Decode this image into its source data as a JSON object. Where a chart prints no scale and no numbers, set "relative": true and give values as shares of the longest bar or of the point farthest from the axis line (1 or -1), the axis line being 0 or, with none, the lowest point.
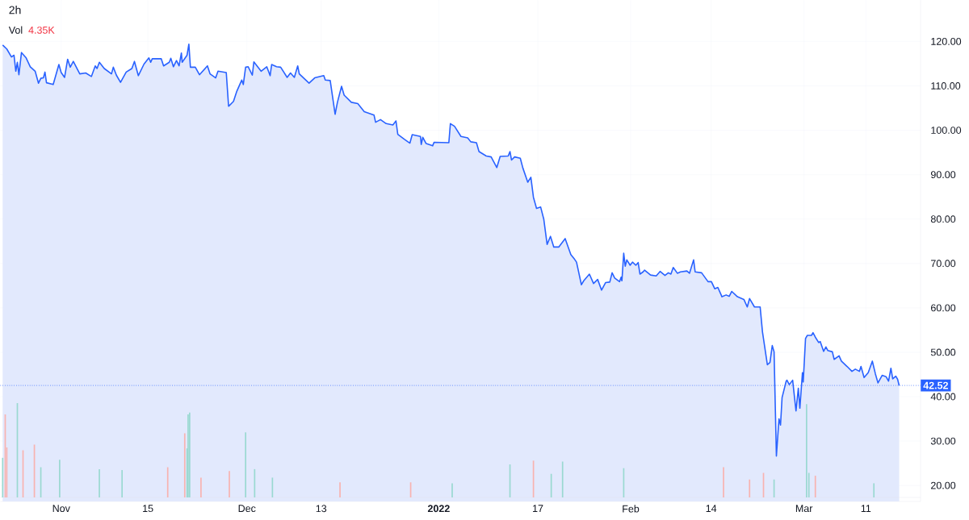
{
  "chart_data": [
    {
      "type": "area",
      "title": "2h",
      "annotations": [
        "Vol",
        "4.35K"
      ],
      "x": [
        "2021-10-22T13:00",
        "2021-10-23T05:00",
        "2021-10-23T23:00",
        "2021-10-24T09:00",
        "2021-10-24T16:00",
        "2021-10-24T22:00",
        "2021-10-25T04:00",
        "2021-10-25T14:00",
        "2021-10-26T08:00",
        "2021-10-27T00:00",
        "2021-10-27T19:00",
        "2021-10-28T08:00",
        "2021-10-28T17:00",
        "2021-10-29T03:00",
        "2021-10-29T09:00",
        "2021-10-29T15:00",
        "2021-10-30T17:00",
        "2021-10-31T15:00",
        "2021-11-01T00:00",
        "2021-11-01T13:00",
        "2021-11-02T01:00",
        "2021-11-02T11:00",
        "2021-11-02T23:00",
        "2021-11-04T00:00",
        "2021-11-04T23:00",
        "2021-11-05T21:00",
        "2021-11-06T12:00",
        "2021-11-06T19:00",
        "2021-11-07T04:00",
        "2021-11-07T23:00",
        "2021-11-09T03:00",
        "2021-11-09T10:00",
        "2021-11-09T22:00",
        "2021-11-10T14:00",
        "2021-11-11T12:00",
        "2021-11-12T10:00",
        "2021-11-12T20:00",
        "2021-11-13T11:00",
        "2021-11-14T09:00",
        "2021-11-15T04:00",
        "2021-11-15T11:00",
        "2021-11-15T17:00",
        "2021-11-17T04:00",
        "2021-11-17T13:00",
        "2021-11-18T11:00",
        "2021-11-18T17:00",
        "2021-11-19T03:00",
        "2021-11-19T15:00",
        "2021-11-20T01:00",
        "2021-11-20T10:00",
        "2021-11-20T13:00",
        "2021-11-21T08:00",
        "2021-11-21T15:00",
        "2021-11-21T21:00",
        "2021-11-22T16:00",
        "2021-11-23T08:00",
        "2021-11-24T15:00",
        "2021-11-25T01:00",
        "2021-11-25T23:00",
        "2021-11-26T08:00",
        "2021-11-27T16:00",
        "2021-11-28T01:00",
        "2021-11-28T20:00",
        "2021-11-29T09:00",
        "2021-11-30T04:00",
        "2021-11-30T10:00",
        "2021-11-30T19:00",
        "2021-12-01T05:00",
        "2021-12-01T21:00",
        "2021-12-02T03:00",
        "2021-12-03T07:00",
        "2021-12-04T05:00",
        "2021-12-04T18:00",
        "2021-12-05T00:00",
        "2021-12-05T19:00",
        "2021-12-06T11:00",
        "2021-12-07T12:00",
        "2021-12-08T01:00",
        "2021-12-08T16:00",
        "2021-12-09T05:00",
        "2021-12-09T11:00",
        "2021-12-11T01:00",
        "2021-12-11T23:00",
        "2021-12-13T10:00",
        "2021-12-13T16:00",
        "2021-12-14T11:00",
        "2021-12-15T06:00",
        "2021-12-15T15:00",
        "2021-12-16T07:00",
        "2021-12-16T17:00",
        "2021-12-17T21:00",
        "2021-12-18T22:00",
        "2021-12-19T23:00",
        "2021-12-21T13:00",
        "2021-12-21T19:00",
        "2021-12-22T14:00",
        "2021-12-23T12:00",
        "2021-12-24T14:00",
        "2021-12-25T02:00",
        "2021-12-25T09:00",
        "2021-12-26T10:00",
        "2021-12-27T08:00",
        "2021-12-27T17:00",
        "2021-12-29T01:00",
        "2021-12-29T04:00",
        "2021-12-29T10:00",
        "2021-12-29T23:00",
        "2021-12-31T00:00",
        "2021-12-31T06:00",
        "2022-01-02T15:00",
        "2022-01-02T21:00",
        "2022-01-03T13:00",
        "2022-01-04T14:00",
        "2022-01-05T16:00",
        "2022-01-06T04:00",
        "2022-01-07T02:00",
        "2022-01-07T12:00",
        "2022-01-08T16:00",
        "2022-01-09T11:00",
        "2022-01-10T09:00",
        "2022-01-10T22:00",
        "2022-01-12T05:00",
        "2022-01-12T12:00",
        "2022-01-12T18:00",
        "2022-01-13T06:00",
        "2022-01-14T04:00",
        "2022-01-14T14:00",
        "2022-01-15T09:00",
        "2022-01-15T21:00",
        "2022-01-16T07:00",
        "2022-01-16T19:00",
        "2022-01-17T11:00",
        "2022-01-17T23:00",
        "2022-01-18T12:00",
        "2022-01-19T01:00",
        "2022-01-19T14:00",
        "2022-01-20T09:00",
        "2022-01-21T10:00",
        "2022-01-22T08:00",
        "2022-01-22T23:00",
        "2022-01-23T06:00",
        "2022-01-24T01:00",
        "2022-01-24T10:00",
        "2022-01-25T08:00",
        "2022-01-26T00:00",
        "2022-01-26T16:00",
        "2022-01-27T07:00",
        "2022-01-27T23:00",
        "2022-01-28T15:00",
        "2022-01-29T00:00",
        "2022-01-29T10:00",
        "2022-01-30T05:00",
        "2022-01-30T11:00",
        "2022-01-30T14:00",
        "2022-01-30T21:00",
        "2022-01-31T03:00",
        "2022-01-31T09:00",
        "2022-01-31T22:00",
        "2022-02-01T07:00",
        "2022-02-01T20:00",
        "2022-02-02T05:00",
        "2022-02-02T12:00",
        "2022-02-03T00:00",
        "2022-02-03T06:00",
        "2022-02-04T05:00",
        "2022-02-05T03:00",
        "2022-02-05T18:00",
        "2022-02-06T13:00",
        "2022-02-07T02:00",
        "2022-02-07T12:00",
        "2022-02-07T21:00",
        "2022-02-08T13:00",
        "2022-02-09T01:00",
        "2022-02-10T02:00",
        "2022-02-10T12:00",
        "2022-02-11T04:00",
        "2022-02-11T10:00",
        "2022-02-12T11:00",
        "2022-02-13T12:00",
        "2022-02-14T01:00",
        "2022-02-14T14:00",
        "2022-02-15T02:00",
        "2022-02-15T18:00",
        "2022-02-16T10:00",
        "2022-02-16T22:00",
        "2022-02-17T08:00",
        "2022-02-18T06:00",
        "2022-02-19T07:00",
        "2022-02-19T20:00",
        "2022-02-20T05:00",
        "2022-02-21T00:00",
        "2022-02-21T22:00",
        "2022-02-22T07:00",
        "2022-02-23T02:00",
        "2022-02-23T12:00",
        "2022-02-23T21:00",
        "2022-02-24T04:00",
        "2022-02-24T13:00",
        "2022-02-24T23:00",
        "2022-02-25T05:00",
        "2022-02-25T11:00",
        "2022-02-26T03:00",
        "2022-02-26T06:00",
        "2022-02-26T15:00",
        "2022-02-27T04:00",
        "2022-02-27T17:00",
        "2022-02-28T02:00",
        "2022-02-28T08:00",
        "2022-02-28T18:00",
        "2022-02-28T21:00",
        "2022-03-01T06:00",
        "2022-03-01T13:00",
        "2022-03-02T05:00",
        "2022-03-02T11:00",
        "2022-03-02T20:00",
        "2022-03-03T09:00",
        "2022-03-03T15:00",
        "2022-03-04T04:00",
        "2022-03-04T13:00",
        "2022-03-04T20:00",
        "2022-03-05T14:00",
        "2022-03-05T21:00",
        "2022-03-06T16:00",
        "2022-03-07T01:00",
        "2022-03-07T23:00",
        "2022-03-08T18:00",
        "2022-03-09T07:00",
        "2022-03-09T23:00",
        "2022-03-10T05:00",
        "2022-03-10T17:00",
        "2022-03-11T09:00",
        "2022-03-12T01:00",
        "2022-03-12T13:00",
        "2022-03-12T23:00",
        "2022-03-13T15:00",
        "2022-03-14T06:00",
        "2022-03-14T16:00",
        "2022-03-15T01:00",
        "2022-03-15T08:00",
        "2022-03-15T20:00",
        "2022-03-16T03:00",
        "2022-03-16T09:00"
      ],
      "series": [
        {
          "color": "#2962ff",
          "values": [
            119.2,
            118.3,
            116.5,
            116.9,
            113.3,
            115.3,
            112.5,
            117.5,
            116.3,
            114.3,
            113.3,
            110.6,
            111.7,
            111.8,
            113.1,
            110.7,
            110.3,
            114.8,
            113.0,
            111.9,
            116.0,
            114.2,
            115.5,
            112.7,
            112.9,
            112.1,
            114.5,
            113.9,
            115.3,
            113.9,
            112.7,
            114.2,
            112.4,
            110.8,
            113.1,
            113.9,
            115.5,
            112.3,
            114.9,
            116.3,
            115.3,
            116.1,
            116.1,
            114.5,
            115.3,
            116.2,
            114.3,
            115.7,
            114.5,
            117.4,
            115.3,
            116.9,
            119.4,
            114.2,
            114.2,
            112.5,
            114.5,
            112.7,
            111.8,
            113.3,
            113.0,
            105.4,
            106.5,
            108.8,
            111.3,
            110.3,
            114.2,
            114.3,
            112.4,
            115.4,
            113.3,
            114.3,
            112.3,
            114.8,
            114.3,
            114.2,
            111.9,
            112.9,
            111.9,
            114.5,
            112.7,
            110.6,
            111.8,
            112.3,
            111.3,
            111.2,
            103.6,
            106.3,
            109.9,
            107.9,
            106.3,
            106.0,
            104.2,
            103.4,
            101.8,
            102.4,
            101.5,
            101.2,
            102.1,
            99.1,
            98.0,
            97.1,
            99.0,
            98.6,
            96.8,
            98.4,
            97.0,
            96.5,
            97.3,
            97.2,
            101.5,
            100.9,
            98.6,
            98.3,
            97.4,
            97.2,
            95.2,
            94.2,
            94.0,
            91.6,
            94.1,
            94.2,
            95.2,
            93.3,
            94.0,
            93.7,
            91.5,
            88.3,
            89.4,
            84.9,
            82.4,
            82.7,
            80.0,
            74.3,
            76.1,
            73.7,
            73.7,
            75.6,
            72.0,
            70.9,
            70.3,
            65.2,
            66.1,
            67.6,
            65.5,
            66.4,
            64.0,
            65.7,
            65.8,
            67.9,
            66.7,
            65.9,
            66.9,
            66.1,
            72.3,
            69.4,
            70.8,
            69.6,
            70.3,
            69.6,
            70.2,
            67.6,
            68.1,
            68.5,
            67.4,
            67.2,
            68.2,
            67.3,
            67.9,
            67.6,
            69.1,
            67.8,
            68.1,
            68.3,
            67.8,
            70.8,
            68.1,
            67.9,
            65.9,
            65.9,
            64.3,
            64.6,
            62.5,
            62.9,
            62.6,
            63.7,
            62.5,
            61.9,
            60.2,
            62.1,
            60.2,
            60.2,
            54.6,
            47.2,
            47.7,
            51.5,
            50.1,
            26.6,
            35.0,
            33.6,
            39.8,
            43.5,
            43.7,
            42.7,
            43.7,
            36.8,
            41.9,
            37.4,
            45.4,
            43.3,
            53.1,
            53.8,
            53.8,
            54.4,
            53.4,
            52.2,
            52.4,
            50.2,
            51.2,
            50.4,
            50.1,
            48.4,
            49.2,
            48.0,
            46.8,
            45.7,
            46.2,
            45.7,
            46.8,
            44.3,
            45.4,
            48.0,
            45.1,
            43.1,
            44.8,
            44.5,
            43.5,
            46.4,
            44.0,
            44.6,
            43.9,
            42.5
          ]
        }
      ],
      "xlim": [
        "2021-10-22T04:00",
        "2022-03-19T20:00"
      ],
      "ylim": [
        16.4,
        129.3
      ],
      "xticks": [
        {
          "value": "2021-11-01",
          "label": "Nov"
        },
        {
          "value": "2021-11-15",
          "label": "15"
        },
        {
          "value": "2021-12-01",
          "label": "Dec"
        },
        {
          "value": "2021-12-13",
          "label": "13"
        },
        {
          "value": "2022-01-01",
          "label": "**2022**"
        },
        {
          "value": "2022-01-17",
          "label": "17"
        },
        {
          "value": "2022-02-01",
          "label": "Feb"
        },
        {
          "value": "2022-02-14",
          "label": "14"
        },
        {
          "value": "2022-03-01",
          "label": "Mar"
        },
        {
          "value": "2022-03-11",
          "label": "11"
        }
      ],
      "yticks": [
        {
          "value": 20,
          "label": "20.00"
        },
        {
          "value": 30,
          "label": "30.00"
        },
        {
          "value": 40,
          "label": "40.00"
        },
        {
          "value": 50,
          "label": "50.00"
        },
        {
          "value": 60,
          "label": "60.00"
        },
        {
          "value": 70,
          "label": "70.00"
        },
        {
          "value": 80,
          "label": "80.00"
        },
        {
          "value": 90,
          "label": "90.00"
        },
        {
          "value": 100,
          "label": "100.00"
        },
        {
          "value": 110,
          "label": "110.00"
        },
        {
          "value": 120,
          "label": "120.00"
        }
      ],
      "ref_lines": [
        {
          "axis": "y",
          "value": 42.52,
          "label": "42.52",
          "color": "#2962ff",
          "line_style": "dotted"
        }
      ],
      "grid": true,
      "line_style": "solid"
    },
    {
      "type": "bar",
      "relative": true,
      "tick_labels": false,
      "xlim": [
        "2021-10-22T04:00",
        "2022-03-19T20:00"
      ],
      "x": [
        "2021-10-22T13:00",
        "2021-10-22T23:00",
        "2021-10-23T05:00",
        "2021-10-24T22:00",
        "2021-10-25T20:00",
        "2021-10-27T16:00",
        "2021-10-28T17:00",
        "2021-10-31T18:00",
        "2021-11-07T04:00",
        "2021-11-10T20:00",
        "2021-11-18T05:00",
        "2021-11-20T23:00",
        "2021-11-21T08:00",
        "2021-11-21T12:00",
        "2021-11-21T18:00",
        "2021-11-23T14:00",
        "2021-11-28T04:00",
        "2021-11-30T19:00",
        "2021-12-02T06:00",
        "2021-12-05T03:00",
        "2021-12-16T01:00",
        "2021-12-27T11:00",
        "2022-01-03T04:00",
        "2022-01-12T12:00",
        "2022-01-16T07:00",
        "2022-01-19T04:00",
        "2022-01-21T00:00",
        "2022-01-30T21:00",
        "2022-02-16T00:00",
        "2022-02-20T05:00",
        "2022-02-22T11:00",
        "2022-02-24T04:00",
        "2022-03-01T10:00",
        "2022-03-01T19:00",
        "2022-03-02T20:00",
        "2022-03-12T07:00"
      ],
      "values": [
        0.42,
        0.88,
        0.53,
        1,
        0.5,
        0.56,
        0.32,
        0.4,
        0.3,
        0.29,
        0.32,
        0.68,
        0.52,
        0.88,
        0.9,
        0.21,
        0.28,
        0.69,
        0.3,
        0.21,
        0.16,
        0.16,
        0.15,
        0.35,
        0.39,
        0.25,
        0.38,
        0.31,
        0.32,
        0.19,
        0.26,
        0.19,
        0.99,
        0.26,
        0.23,
        0.15
      ],
      "colors": [
        "#9ad9d1",
        "#f8b3b0",
        "#f8b3b0",
        "#9ad9d1",
        "#f8b3b0",
        "#f8b3b0",
        "#9ad9d1",
        "#9ad9d1",
        "#9ad9d1",
        "#9ad9d1",
        "#f8b3b0",
        "#f8b3b0",
        "#9ad9d1",
        "#9ad9d1",
        "#9ad9d1",
        "#f8b3b0",
        "#f8b3b0",
        "#9ad9d1",
        "#9ad9d1",
        "#9ad9d1",
        "#f8b3b0",
        "#f8b3b0",
        "#9ad9d1",
        "#9ad9d1",
        "#f8b3b0",
        "#9ad9d1",
        "#9ad9d1",
        "#9ad9d1",
        "#f8b3b0",
        "#f8b3b0",
        "#f8b3b0",
        "#9ad9d1",
        "#9ad9d1",
        "#9ad9d1",
        "#f8b3b0",
        "#9ad9d1"
      ]
    }
  ]
}
